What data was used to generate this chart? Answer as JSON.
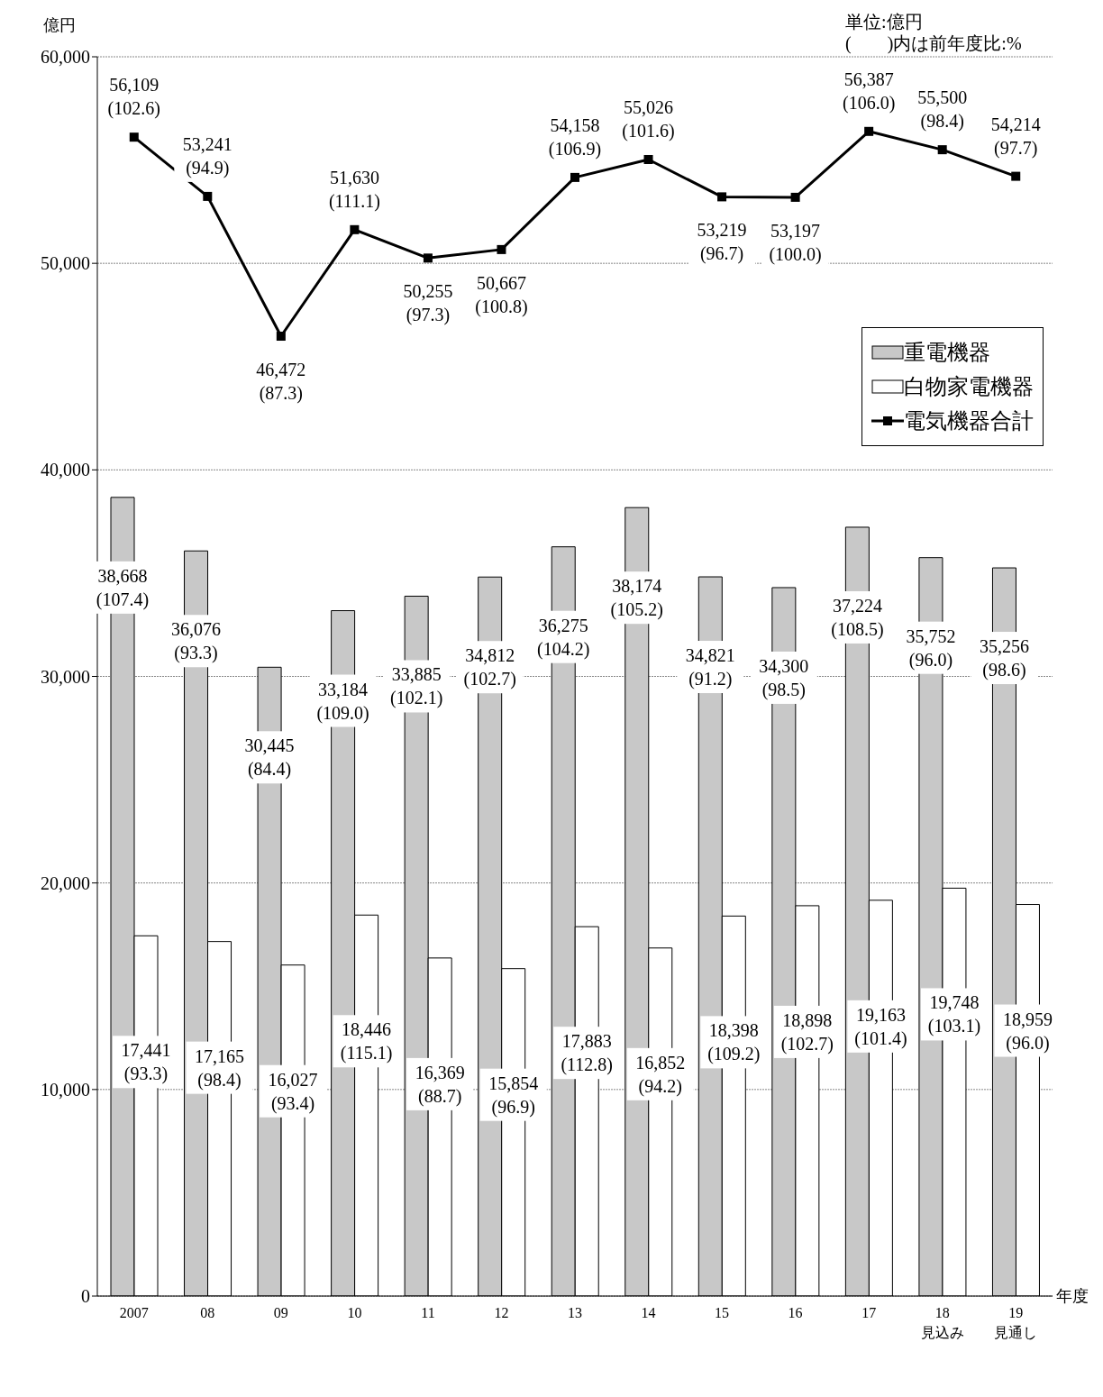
{
  "chart_data": {
    "type": "bar",
    "ylabel": "億円",
    "xlabel": "年度",
    "annotations": [
      "単位:億円",
      "(　　)内は前年度比:%"
    ],
    "categories": [
      "2007",
      "08",
      "09",
      "10",
      "11",
      "12",
      "13",
      "14",
      "15",
      "16",
      "17",
      "18\n見込み",
      "19\n見通し"
    ],
    "ylim": [
      0,
      60000
    ],
    "yticks": [
      0,
      {
        "value": 10000,
        "label": "10,000"
      },
      {
        "value": 20000,
        "label": "20,000"
      },
      {
        "value": 30000,
        "label": "30,000"
      },
      {
        "value": 40000,
        "label": "40,000"
      },
      {
        "value": 50000,
        "label": "50,000"
      },
      {
        "value": 60000,
        "label": "60,000"
      }
    ],
    "grid": "y",
    "legend": "top right",
    "series": [
      {
        "name": "重電機器",
        "color": "#c8c8c8",
        "values": [
          38668,
          36076,
          30445,
          33184,
          33885,
          34812,
          36275,
          38174,
          34821,
          34300,
          37224,
          35752,
          35256
        ],
        "value_labels": [
          "38,668\n(107.4)",
          "36,076\n(93.3)",
          "30,445\n(84.4)",
          "33,184\n(109.0)",
          "33,885\n(102.1)",
          "34,812\n(102.7)",
          "36,275\n(104.2)",
          "38,174\n(105.2)",
          "34,821\n(91.2)",
          "34,300\n(98.5)",
          "37,224\n(108.5)",
          "35,752\n(96.0)",
          "35,256\n(98.6)"
        ]
      },
      {
        "name": "白物家電機器",
        "color": "#ffffff",
        "values": [
          17441,
          17165,
          16027,
          18446,
          16369,
          15854,
          17883,
          16852,
          18398,
          18898,
          19163,
          19748,
          18959
        ],
        "value_labels": [
          "17,441\n(93.3)",
          "17,165\n(98.4)",
          "16,027\n(93.4)",
          "18,446\n(115.1)",
          "16,369\n(88.7)",
          "15,854\n(96.9)",
          "17,883\n(112.8)",
          "16,852\n(94.2)",
          "18,398\n(109.2)",
          "18,898\n(102.7)",
          "19,163\n(101.4)",
          "19,748\n(103.1)",
          "18,959\n(96.0)"
        ]
      },
      {
        "name": "電気機器合計",
        "type": "line",
        "color": "#000000",
        "marker": "square",
        "values": [
          56109,
          53241,
          46472,
          51630,
          50255,
          50667,
          54158,
          55026,
          53219,
          53197,
          56387,
          55500,
          54214
        ],
        "value_labels": [
          "56,109\n(102.6)",
          "53,241\n(94.9)",
          "46,472\n(87.3)",
          "51,630\n(111.1)",
          "50,255\n(97.3)",
          "50,667\n(100.8)",
          "54,158\n(106.9)",
          "55,026\n(101.6)",
          "53,219\n(96.7)",
          "53,197\n(100.0)",
          "56,387\n(106.0)",
          "55,500\n(98.4)",
          "54,214\n(97.7)"
        ]
      }
    ]
  }
}
